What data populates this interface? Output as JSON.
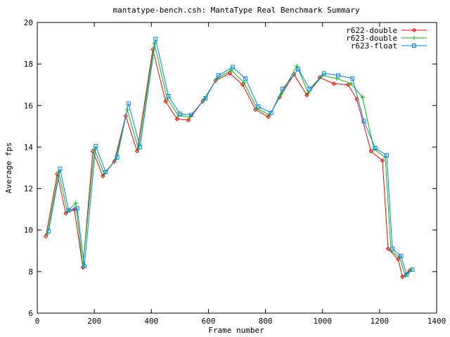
{
  "chart_data": {
    "type": "line",
    "title": "mantatype-bench.csh: MantaType Real Benchmark Summary",
    "xlabel": "Frame number",
    "ylabel": "Average fps",
    "xlim": [
      0,
      1400
    ],
    "ylim": [
      6,
      20
    ],
    "xticks": [
      0,
      200,
      400,
      600,
      800,
      1000,
      1200,
      1400
    ],
    "yticks": [
      6,
      8,
      10,
      12,
      14,
      16,
      18,
      20
    ],
    "grid": false,
    "legend": "top-right",
    "series": [
      {
        "name": "r622-double",
        "color": "#ff0000",
        "marker": "diamond",
        "x": [
          30,
          70,
          100,
          130,
          160,
          195,
          230,
          270,
          310,
          350,
          405,
          450,
          490,
          530,
          580,
          625,
          675,
          720,
          765,
          810,
          850,
          900,
          945,
          990,
          1040,
          1090,
          1120,
          1170,
          1210,
          1230,
          1265,
          1280,
          1305
        ],
        "y": [
          9.7,
          12.7,
          10.8,
          11.0,
          8.2,
          13.8,
          12.6,
          13.3,
          15.5,
          13.8,
          18.7,
          16.2,
          15.35,
          15.3,
          16.2,
          17.2,
          17.55,
          17.0,
          15.8,
          15.45,
          16.4,
          17.5,
          16.5,
          17.35,
          17.05,
          17.0,
          16.3,
          13.8,
          13.35,
          9.1,
          8.6,
          7.75,
          8.05
        ]
      },
      {
        "name": "r623-double",
        "color": "#00c000",
        "marker": "plus",
        "x": [
          35,
          75,
          105,
          135,
          160,
          200,
          235,
          275,
          315,
          355,
          410,
          455,
          495,
          535,
          585,
          630,
          680,
          725,
          770,
          815,
          855,
          910,
          950,
          1000,
          1050,
          1100,
          1140,
          1180,
          1220,
          1240,
          1270,
          1290,
          1310
        ],
        "y": [
          9.8,
          12.8,
          10.9,
          11.3,
          8.25,
          13.9,
          12.7,
          13.4,
          15.8,
          13.9,
          19.0,
          16.35,
          15.5,
          15.45,
          16.3,
          17.3,
          17.7,
          17.1,
          15.85,
          15.55,
          16.55,
          17.9,
          16.6,
          17.45,
          17.3,
          17.05,
          16.4,
          13.9,
          13.5,
          9.0,
          8.7,
          7.8,
          8.1
        ]
      },
      {
        "name": "r623-float",
        "color": "#0080ff",
        "marker": "square",
        "x": [
          40,
          80,
          110,
          140,
          165,
          205,
          240,
          280,
          320,
          360,
          415,
          460,
          500,
          540,
          590,
          635,
          685,
          730,
          775,
          820,
          860,
          915,
          955,
          1005,
          1055,
          1105,
          1145,
          1185,
          1225,
          1245,
          1275,
          1295,
          1315
        ],
        "y": [
          9.95,
          12.95,
          10.95,
          11.05,
          8.25,
          14.05,
          12.8,
          13.5,
          16.1,
          14.0,
          19.2,
          16.45,
          15.6,
          15.55,
          16.35,
          17.45,
          17.85,
          17.3,
          15.95,
          15.65,
          16.8,
          17.75,
          16.8,
          17.55,
          17.45,
          17.3,
          15.25,
          13.95,
          13.6,
          9.1,
          8.75,
          7.85,
          8.1
        ]
      }
    ]
  }
}
